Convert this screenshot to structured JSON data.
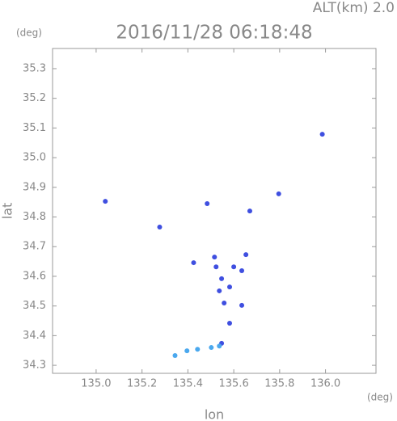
{
  "chart_data": {
    "type": "scatter",
    "title": "2016/11/28 06:18:48",
    "subtitle": "ALT(km) 2.0",
    "y_unit": "(deg)",
    "x_unit": "(deg)",
    "xlabel": "lon",
    "ylabel": "lat",
    "xlim": [
      134.81,
      136.22
    ],
    "ylim": [
      34.273,
      35.368
    ],
    "xticks": [
      {
        "value": 135,
        "label": "135.0"
      },
      135.2,
      135.4,
      135.6,
      135.8,
      {
        "value": 136,
        "label": "136.0"
      }
    ],
    "yticks": [
      34.3,
      34.4,
      34.5,
      34.6,
      34.7,
      34.8,
      34.9,
      {
        "value": 35,
        "label": "35.0"
      },
      35.1,
      35.2,
      35.3
    ],
    "series": [
      {
        "color": "#3f4fe0",
        "x": [
          135.986,
          135.04,
          135.277,
          135.796,
          135.484,
          135.516,
          135.523,
          135.547,
          135.537,
          135.558,
          135.582,
          135.6,
          135.635,
          135.653,
          135.635,
          135.582,
          135.547,
          135.67,
          135.425
        ],
        "values": [
          35.079,
          34.853,
          34.766,
          34.878,
          34.845,
          34.665,
          34.632,
          34.592,
          34.551,
          34.51,
          34.564,
          34.632,
          34.619,
          34.673,
          34.502,
          34.442,
          34.374,
          34.82,
          34.646
        ]
      },
      {
        "color": "#4aa8ee",
        "x": [
          135.344,
          135.396,
          135.442,
          135.502,
          135.537
        ],
        "values": [
          34.333,
          34.349,
          34.354,
          34.36,
          34.365
        ]
      }
    ]
  }
}
